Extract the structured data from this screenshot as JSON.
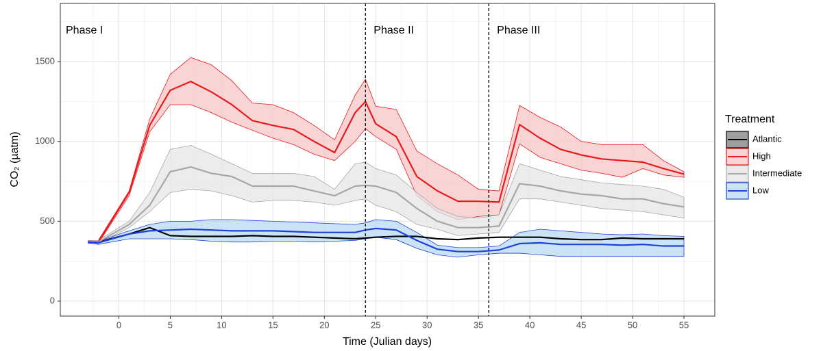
{
  "chart_data": {
    "type": "line",
    "x_label": "Time (Julian days)",
    "y_label": "CO₂  (µatm)",
    "legend_title": "Treatment",
    "legend": "right",
    "grid": true,
    "xlim": [
      -5.7,
      58
    ],
    "ylim": [
      -94,
      1864
    ],
    "xticks": [
      0,
      5,
      10,
      15,
      20,
      25,
      30,
      35,
      40,
      45,
      50,
      55
    ],
    "yticks": [
      0,
      500,
      1000,
      1500
    ],
    "vlines": [
      24,
      36
    ],
    "phase_labels": [
      "Phase I",
      "Phase II",
      "Phase III"
    ],
    "x": [
      -3,
      -2,
      1,
      3,
      5,
      7,
      9,
      11,
      13,
      15,
      17,
      19,
      21,
      23,
      24,
      25,
      27,
      29,
      31,
      33,
      35,
      37,
      39,
      41,
      43,
      45,
      47,
      49,
      51,
      53,
      55
    ],
    "series": [
      {
        "name": "Atlantic",
        "color": "#000000",
        "fill": "#7f7f7f",
        "values": [
          375,
          370,
          420,
          460,
          410,
          405,
          405,
          405,
          410,
          405,
          405,
          400,
          395,
          390,
          395,
          400,
          405,
          405,
          390,
          385,
          395,
          400,
          400,
          400,
          390,
          385,
          385,
          395,
          390,
          390,
          390
        ]
      },
      {
        "name": "High",
        "color": "#e8191c",
        "fill": "#f5c5c5",
        "values": [
          375,
          370,
          680,
          1100,
          1320,
          1375,
          1310,
          1230,
          1130,
          1100,
          1075,
          1000,
          930,
          1180,
          1250,
          1110,
          1030,
          780,
          690,
          625,
          625,
          620,
          1105,
          1020,
          950,
          915,
          890,
          880,
          870,
          830,
          795
        ],
        "upper": [
          380,
          380,
          690,
          1140,
          1420,
          1525,
          1480,
          1380,
          1240,
          1230,
          1180,
          1100,
          1010,
          1290,
          1390,
          1220,
          1200,
          940,
          860,
          790,
          700,
          690,
          1225,
          1150,
          1090,
          1000,
          980,
          980,
          980,
          880,
          810
        ],
        "lower": [
          360,
          360,
          660,
          1060,
          1230,
          1230,
          1180,
          1120,
          1070,
          1020,
          980,
          920,
          880,
          1000,
          1080,
          1030,
          950,
          660,
          560,
          510,
          530,
          540,
          985,
          900,
          860,
          820,
          800,
          775,
          830,
          790,
          775
        ]
      },
      {
        "name": "Intermediate",
        "color": "#a6a6a6",
        "fill": "#e6e6e6",
        "values": [
          375,
          370,
          480,
          600,
          810,
          840,
          800,
          780,
          720,
          720,
          720,
          690,
          660,
          720,
          725,
          720,
          680,
          580,
          500,
          460,
          460,
          470,
          735,
          720,
          690,
          670,
          660,
          640,
          640,
          610,
          590
        ],
        "upper": [
          380,
          380,
          500,
          680,
          950,
          975,
          920,
          860,
          800,
          800,
          800,
          780,
          700,
          860,
          870,
          830,
          790,
          680,
          580,
          530,
          520,
          540,
          860,
          820,
          780,
          760,
          740,
          730,
          720,
          700,
          650
        ],
        "lower": [
          360,
          360,
          460,
          560,
          680,
          700,
          690,
          660,
          620,
          630,
          630,
          620,
          600,
          630,
          640,
          600,
          560,
          480,
          450,
          410,
          420,
          430,
          640,
          640,
          620,
          600,
          580,
          570,
          560,
          540,
          520
        ]
      },
      {
        "name": "Low",
        "color": "#1f3fdd",
        "fill": "#b9dbf2",
        "values": [
          370,
          365,
          420,
          440,
          445,
          450,
          445,
          440,
          440,
          440,
          435,
          430,
          430,
          430,
          445,
          455,
          445,
          380,
          325,
          310,
          310,
          320,
          360,
          365,
          355,
          355,
          355,
          350,
          355,
          345,
          345
        ],
        "upper": [
          375,
          375,
          440,
          480,
          500,
          500,
          510,
          510,
          505,
          500,
          495,
          490,
          485,
          480,
          490,
          510,
          500,
          430,
          350,
          335,
          335,
          345,
          430,
          450,
          440,
          430,
          420,
          415,
          420,
          410,
          405
        ],
        "lower": [
          365,
          355,
          390,
          390,
          390,
          385,
          375,
          370,
          370,
          375,
          375,
          370,
          375,
          380,
          390,
          400,
          385,
          330,
          290,
          275,
          290,
          300,
          300,
          290,
          280,
          280,
          280,
          280,
          280,
          280,
          280
        ]
      }
    ]
  }
}
